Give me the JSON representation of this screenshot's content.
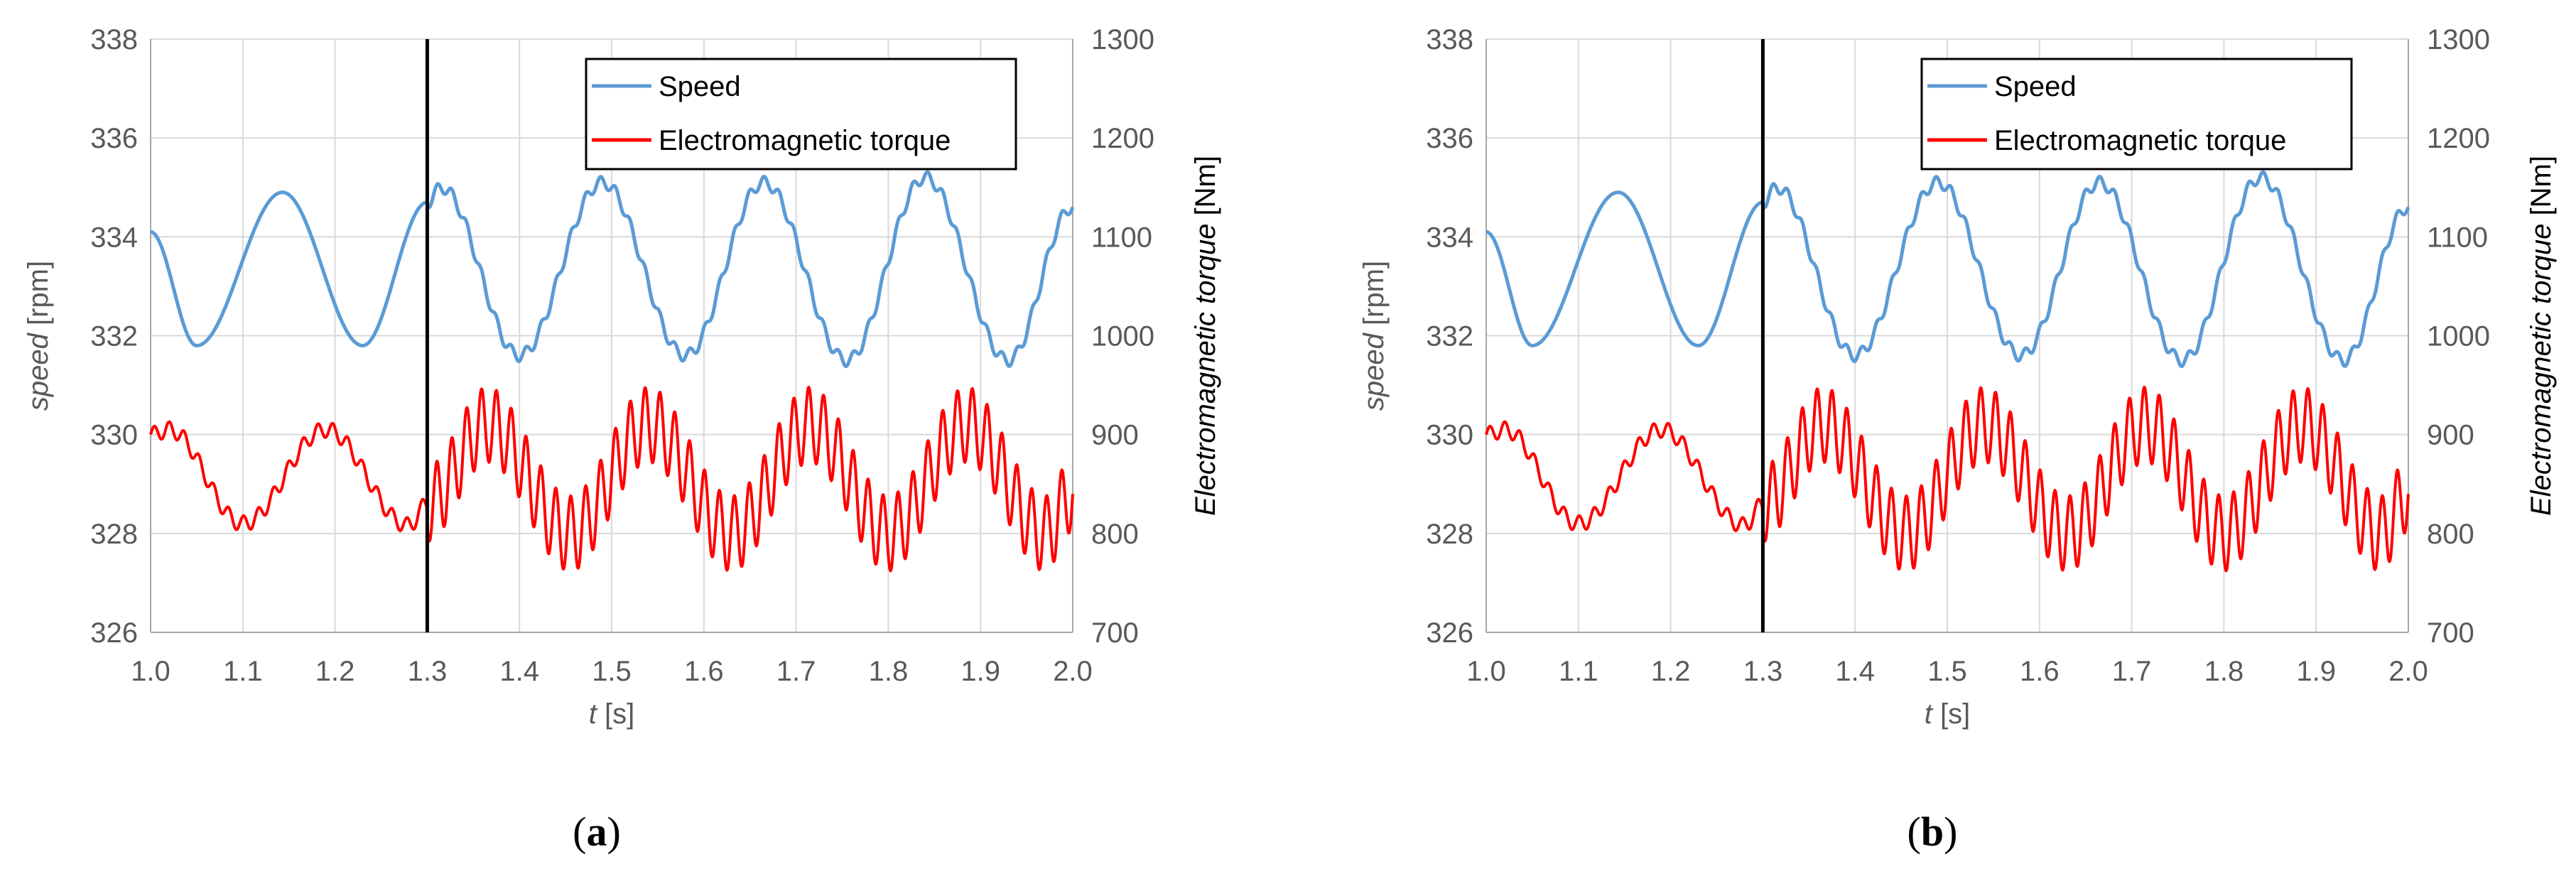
{
  "chart_data": [
    {
      "type": "line",
      "panel": "a",
      "xlabel": {
        "var": "t",
        "unit": " [s]"
      },
      "ylabel_left": {
        "var": "speed",
        "unit": " [rpm]"
      },
      "ylabel_right": {
        "var": "Electromagnetic torque",
        "unit": " [Nm]"
      },
      "xlim": [
        1.0,
        2.0
      ],
      "ylim_left": [
        326,
        338
      ],
      "ylim_right": [
        700,
        1300
      ],
      "x_ticks": [
        "1.0",
        "1.1",
        "1.2",
        "1.3",
        "1.4",
        "1.5",
        "1.6",
        "1.7",
        "1.8",
        "1.9",
        "2.0"
      ],
      "y_left_ticks": [
        "326",
        "328",
        "330",
        "332",
        "334",
        "336",
        "338"
      ],
      "y_right_ticks": [
        "700",
        "800",
        "900",
        "1000",
        "1100",
        "1200",
        "1300"
      ],
      "grid": true,
      "legend_position": "top-right",
      "vertical_marker_x": 1.3,
      "series": [
        {
          "name": "Speed",
          "axis": "left",
          "color": "#5b9bd5",
          "x": [
            1.0,
            1.05,
            1.143,
            1.23,
            1.3,
            1.315,
            1.4,
            1.49,
            1.58,
            1.665,
            1.755,
            1.84,
            1.93,
            2.0
          ],
          "y": [
            334.1,
            331.8,
            334.9,
            331.8,
            334.7,
            335.0,
            331.6,
            335.1,
            331.6,
            335.1,
            331.5,
            335.2,
            331.5,
            334.6
          ]
        },
        {
          "name": "Electromagnetic torque",
          "axis": "right",
          "color": "#ff0000",
          "x": [
            1.0,
            1.02,
            1.1,
            1.19,
            1.28,
            1.3,
            1.365,
            1.455,
            1.54,
            1.63,
            1.715,
            1.8,
            1.885,
            1.97,
            2.0
          ],
          "y": [
            900,
            905,
            810,
            905,
            808,
            830,
            910,
            800,
            910,
            800,
            910,
            800,
            910,
            800,
            840
          ]
        }
      ]
    },
    {
      "type": "line",
      "panel": "b",
      "xlabel": {
        "var": "t",
        "unit": " [s]"
      },
      "ylabel_left": {
        "var": "speed",
        "unit": " [rpm]"
      },
      "ylabel_right": {
        "var": "Electromagnetic torque",
        "unit": " [Nm]"
      },
      "xlim": [
        1.0,
        2.0
      ],
      "ylim_left": [
        326,
        338
      ],
      "ylim_right": [
        700,
        1300
      ],
      "x_ticks": [
        "1.0",
        "1.1",
        "1.2",
        "1.3",
        "1.4",
        "1.5",
        "1.6",
        "1.7",
        "1.8",
        "1.9",
        "2.0"
      ],
      "y_left_ticks": [
        "326",
        "328",
        "330",
        "332",
        "334",
        "336",
        "338"
      ],
      "y_right_ticks": [
        "700",
        "800",
        "900",
        "1000",
        "1100",
        "1200",
        "1300"
      ],
      "grid": true,
      "legend_position": "top-right",
      "vertical_marker_x": 1.3,
      "series": [
        {
          "name": "Speed",
          "axis": "left",
          "color": "#5b9bd5",
          "x": [
            1.0,
            1.05,
            1.143,
            1.23,
            1.3,
            1.315,
            1.4,
            1.49,
            1.58,
            1.665,
            1.755,
            1.84,
            1.93,
            2.0
          ],
          "y": [
            334.1,
            331.8,
            334.9,
            331.8,
            334.7,
            335.0,
            331.6,
            335.1,
            331.6,
            335.1,
            331.5,
            335.2,
            331.5,
            334.6
          ]
        },
        {
          "name": "Electromagnetic torque",
          "axis": "right",
          "color": "#ff0000",
          "x": [
            1.0,
            1.02,
            1.1,
            1.19,
            1.28,
            1.3,
            1.365,
            1.455,
            1.54,
            1.63,
            1.715,
            1.8,
            1.885,
            1.97,
            2.0
          ],
          "y": [
            900,
            905,
            810,
            905,
            808,
            830,
            910,
            800,
            910,
            800,
            910,
            800,
            910,
            800,
            840
          ]
        }
      ]
    }
  ],
  "panels": [
    {
      "label_open": "(",
      "label_letter": "a",
      "label_close": ")"
    },
    {
      "label_open": "(",
      "label_letter": "b",
      "label_close": ")"
    }
  ]
}
